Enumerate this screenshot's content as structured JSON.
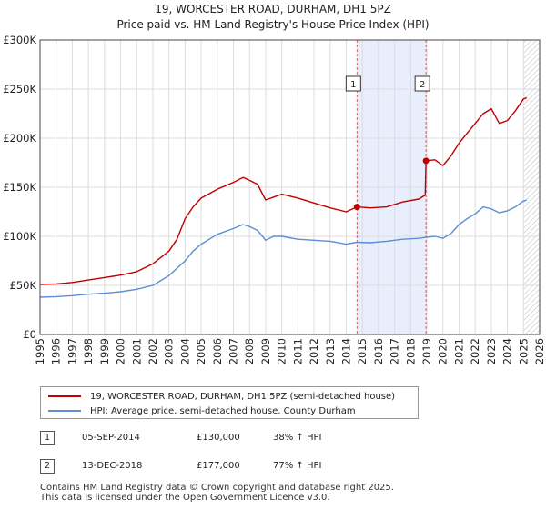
{
  "chart_data": {
    "type": "line",
    "title": "19, WORCESTER ROAD, DURHAM, DH1 5PZ",
    "subtitle": "Price paid vs. HM Land Registry's House Price Index (HPI)",
    "xlim": [
      1995,
      2026
    ],
    "ylim": [
      0,
      300000
    ],
    "x_ticks": [
      1995,
      1996,
      1997,
      1998,
      1999,
      2000,
      2001,
      2002,
      2003,
      2004,
      2005,
      2006,
      2007,
      2008,
      2009,
      2010,
      2011,
      2012,
      2013,
      2014,
      2015,
      2016,
      2017,
      2018,
      2019,
      2020,
      2021,
      2022,
      2023,
      2024,
      2025,
      2026
    ],
    "y_ticks": [
      {
        "value": 0,
        "label": "£0"
      },
      {
        "value": 50000,
        "label": "£50K"
      },
      {
        "value": 100000,
        "label": "£100K"
      },
      {
        "value": 150000,
        "label": "£150K"
      },
      {
        "value": 200000,
        "label": "£200K"
      },
      {
        "value": 250000,
        "label": "£250K"
      },
      {
        "value": 300000,
        "label": "£300K"
      }
    ],
    "grid": true,
    "shaded_span": [
      2014.67,
      2018.95
    ],
    "forecast_hatch_from": 2025.0,
    "series": [
      {
        "name": "19, WORCESTER ROAD, DURHAM, DH1 5PZ (semi-detached house)",
        "color": "#c00000",
        "points": [
          [
            1995.0,
            51000
          ],
          [
            1996.0,
            51500
          ],
          [
            1997.0,
            53000
          ],
          [
            1998.0,
            55500
          ],
          [
            1999.0,
            58000
          ],
          [
            2000.0,
            60500
          ],
          [
            2001.0,
            64000
          ],
          [
            2002.0,
            72000
          ],
          [
            2003.0,
            85000
          ],
          [
            2003.5,
            97000
          ],
          [
            2004.0,
            118000
          ],
          [
            2004.5,
            130000
          ],
          [
            2005.0,
            139000
          ],
          [
            2006.0,
            148000
          ],
          [
            2007.0,
            155000
          ],
          [
            2007.6,
            160000
          ],
          [
            2008.0,
            157000
          ],
          [
            2008.5,
            153000
          ],
          [
            2009.0,
            137000
          ],
          [
            2009.5,
            140000
          ],
          [
            2010.0,
            143000
          ],
          [
            2011.0,
            139000
          ],
          [
            2012.0,
            134000
          ],
          [
            2013.0,
            129000
          ],
          [
            2014.0,
            125000
          ],
          [
            2014.67,
            130000
          ],
          [
            2015.5,
            129000
          ],
          [
            2016.5,
            130000
          ],
          [
            2017.5,
            135000
          ],
          [
            2018.5,
            138000
          ],
          [
            2018.9,
            142000
          ],
          [
            2018.95,
            177000
          ],
          [
            2019.5,
            178000
          ],
          [
            2020.0,
            172000
          ],
          [
            2020.5,
            182000
          ],
          [
            2021.0,
            195000
          ],
          [
            2021.5,
            205000
          ],
          [
            2022.0,
            215000
          ],
          [
            2022.5,
            225000
          ],
          [
            2023.0,
            230000
          ],
          [
            2023.5,
            215000
          ],
          [
            2024.0,
            218000
          ],
          [
            2024.5,
            228000
          ],
          [
            2025.0,
            240000
          ],
          [
            2025.2,
            241000
          ]
        ]
      },
      {
        "name": "HPI: Average price, semi-detached house, County Durham",
        "color": "#5b8ed6",
        "points": [
          [
            1995.0,
            38000
          ],
          [
            1996.0,
            38500
          ],
          [
            1997.0,
            39500
          ],
          [
            1998.0,
            41000
          ],
          [
            1999.0,
            42000
          ],
          [
            2000.0,
            43500
          ],
          [
            2001.0,
            46000
          ],
          [
            2002.0,
            50000
          ],
          [
            2003.0,
            60000
          ],
          [
            2004.0,
            75000
          ],
          [
            2004.5,
            85000
          ],
          [
            2005.0,
            92000
          ],
          [
            2006.0,
            102000
          ],
          [
            2007.0,
            108000
          ],
          [
            2007.6,
            112000
          ],
          [
            2008.0,
            110000
          ],
          [
            2008.5,
            106000
          ],
          [
            2009.0,
            96000
          ],
          [
            2009.5,
            100000
          ],
          [
            2010.0,
            100000
          ],
          [
            2011.0,
            97000
          ],
          [
            2012.0,
            96000
          ],
          [
            2013.0,
            95000
          ],
          [
            2014.0,
            92000
          ],
          [
            2014.67,
            94000
          ],
          [
            2015.5,
            93500
          ],
          [
            2016.5,
            95000
          ],
          [
            2017.5,
            97000
          ],
          [
            2018.5,
            98000
          ],
          [
            2018.95,
            99000
          ],
          [
            2019.5,
            100000
          ],
          [
            2020.0,
            98000
          ],
          [
            2020.5,
            103000
          ],
          [
            2021.0,
            112000
          ],
          [
            2021.5,
            118000
          ],
          [
            2022.0,
            123000
          ],
          [
            2022.5,
            130000
          ],
          [
            2023.0,
            128000
          ],
          [
            2023.5,
            124000
          ],
          [
            2024.0,
            126000
          ],
          [
            2024.5,
            130000
          ],
          [
            2025.0,
            136000
          ],
          [
            2025.2,
            137000
          ]
        ]
      }
    ],
    "sales": [
      {
        "label": "1",
        "x": 2014.67,
        "y": 130000
      },
      {
        "label": "2",
        "x": 2018.95,
        "y": 177000
      }
    ]
  },
  "legend": {
    "items": [
      {
        "label": "19, WORCESTER ROAD, DURHAM, DH1 5PZ (semi-detached house)",
        "color": "#c00000"
      },
      {
        "label": "HPI: Average price, semi-detached house, County Durham",
        "color": "#5b8ed6"
      }
    ]
  },
  "transactions": [
    {
      "num": "1",
      "date": "05-SEP-2014",
      "price": "£130,000",
      "change": "38% ↑ HPI"
    },
    {
      "num": "2",
      "date": "13-DEC-2018",
      "price": "£177,000",
      "change": "77% ↑ HPI"
    }
  ],
  "footer": {
    "line1": "Contains HM Land Registry data © Crown copyright and database right 2025.",
    "line2": "This data is licensed under the Open Government Licence v3.0."
  }
}
